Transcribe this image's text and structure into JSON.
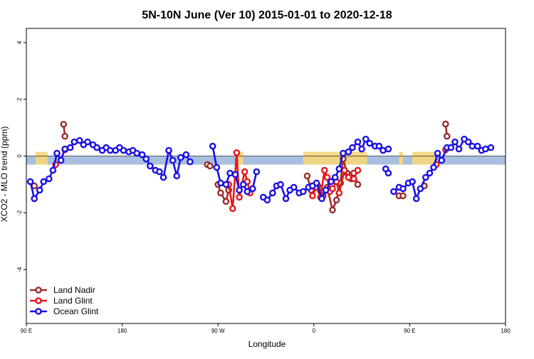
{
  "chart_data": {
    "type": "line",
    "title": "5N-10N June (Ver 10)   2015-01-01 to 2020-12-18",
    "xlabel": "Longitude",
    "ylabel": "XCO2 - MLO trend (ppm)",
    "xlim": [
      0,
      360
    ],
    "ylim": [
      -5.9,
      4.5
    ],
    "x_ticks": [
      {
        "value": 0,
        "label": "90 E"
      },
      {
        "value": 72,
        "label": "180"
      },
      {
        "value": 144,
        "label": "90 W"
      },
      {
        "value": 216,
        "label": "0"
      },
      {
        "value": 288,
        "label": "90 E"
      },
      {
        "value": 360,
        "label": "180"
      }
    ],
    "y_ticks": [
      {
        "value": -4,
        "label": "-4"
      },
      {
        "value": -2,
        "label": "-2"
      },
      {
        "value": 0,
        "label": "0"
      },
      {
        "value": 2,
        "label": "2"
      },
      {
        "value": 4,
        "label": "4"
      }
    ],
    "zero_line": true,
    "background_band": {
      "from": -0.3,
      "to": 0.0,
      "color": "#a8bfe0"
    },
    "land_mask_color": "#f5d77a",
    "land_mask_ranges": [
      [
        7,
        16
      ],
      [
        157,
        163
      ],
      [
        208,
        256
      ],
      [
        280,
        283
      ],
      [
        290,
        307
      ]
    ],
    "legend_position": "bottom-left",
    "series": [
      {
        "name": "Land Nadir",
        "color": "#9b2c2c",
        "segments": [
          [
            [
              6,
              -1.05
            ]
          ],
          [
            [
              28,
              1.12
            ],
            [
              29,
              0.7
            ]
          ],
          [
            [
              136,
              -0.3
            ],
            [
              138,
              -0.35
            ]
          ],
          [
            [
              144,
              -1.0
            ],
            [
              146,
              -1.3
            ],
            [
              150,
              -1.6
            ],
            [
              152,
              -1.2
            ]
          ],
          [
            [
              211,
              -0.7
            ],
            [
              214,
              -1.2
            ],
            [
              216,
              -1.05
            ],
            [
              219,
              -1.05
            ],
            [
              223,
              -1.4
            ],
            [
              226,
              -1.1
            ],
            [
              230,
              -1.9
            ],
            [
              233,
              -1.55
            ],
            [
              236,
              -0.95
            ],
            [
              238,
              -0.1
            ],
            [
              241,
              -0.6
            ],
            [
              244,
              -0.8
            ],
            [
              246,
              -0.6
            ],
            [
              249,
              -1.0
            ]
          ],
          [
            [
              280,
              -1.4
            ],
            [
              283,
              -1.4
            ]
          ],
          [
            [
              299,
              -1.05
            ]
          ],
          [
            [
              315,
              1.13
            ],
            [
              316,
              0.7
            ]
          ]
        ]
      },
      {
        "name": "Land Glint",
        "color": "#e8161a",
        "segments": [
          [
            [
              22,
              -0.3
            ]
          ],
          [
            [
              29,
              0.22
            ]
          ],
          [
            [
              152,
              -1.0
            ],
            [
              155,
              -1.85
            ],
            [
              158,
              0.12
            ],
            [
              160,
              -1.45
            ],
            [
              164,
              -0.55
            ],
            [
              166,
              -0.9
            ],
            [
              168,
              -1.3
            ]
          ],
          [
            [
              215,
              -1.4
            ],
            [
              218,
              -1.1
            ],
            [
              221,
              -1.45
            ],
            [
              224,
              -0.5
            ],
            [
              226,
              -0.75
            ],
            [
              228,
              -1.25
            ],
            [
              230,
              -1.15
            ],
            [
              233,
              -0.9
            ],
            [
              235,
              -1.3
            ],
            [
              239,
              -0.5
            ],
            [
              242,
              -0.75
            ],
            [
              246,
              -0.8
            ],
            [
              249,
              -0.5
            ]
          ],
          [
            [
              308,
              -0.3
            ]
          ],
          [
            [
              315,
              0.22
            ]
          ]
        ]
      },
      {
        "name": "Ocean Glint",
        "color": "#1a0fe6",
        "segments": [
          [
            [
              3,
              -0.9
            ],
            [
              6,
              -1.5
            ],
            [
              10,
              -1.2
            ],
            [
              13,
              -0.9
            ],
            [
              17,
              -0.8
            ],
            [
              20,
              -0.5
            ],
            [
              23,
              0.1
            ],
            [
              26,
              -0.15
            ],
            [
              29,
              0.25
            ],
            [
              33,
              0.3
            ],
            [
              36,
              0.5
            ],
            [
              40,
              0.55
            ],
            [
              43,
              0.4
            ],
            [
              46,
              0.5
            ],
            [
              50,
              0.4
            ],
            [
              53,
              0.3
            ],
            [
              57,
              0.2
            ],
            [
              60,
              0.3
            ],
            [
              63,
              0.2
            ],
            [
              67,
              0.2
            ],
            [
              70,
              0.3
            ],
            [
              73,
              0.2
            ],
            [
              77,
              0.15
            ],
            [
              80,
              0.2
            ],
            [
              83,
              0.1
            ],
            [
              87,
              0.05
            ],
            [
              90,
              -0.1
            ],
            [
              93,
              -0.35
            ],
            [
              97,
              -0.5
            ],
            [
              100,
              -0.55
            ],
            [
              103,
              -0.75
            ],
            [
              107,
              0.2
            ],
            [
              110,
              -0.15
            ],
            [
              113,
              -0.7
            ],
            [
              116,
              -0.05
            ],
            [
              120,
              0.05
            ],
            [
              123,
              -0.2
            ]
          ],
          [
            [
              140,
              0.35
            ],
            [
              143,
              -0.4
            ],
            [
              146,
              -0.95
            ],
            [
              150,
              -1.0
            ],
            [
              153,
              -0.6
            ],
            [
              157,
              -0.65
            ],
            [
              160,
              -1.2
            ],
            [
              163,
              -1.0
            ],
            [
              166,
              -1.25
            ],
            [
              170,
              -1.15
            ],
            [
              173,
              -0.55
            ]
          ],
          [
            [
              178,
              -1.45
            ],
            [
              181,
              -1.55
            ],
            [
              185,
              -1.3
            ],
            [
              188,
              -1.05
            ],
            [
              191,
              -1.0
            ],
            [
              195,
              -1.5
            ],
            [
              198,
              -1.2
            ],
            [
              201,
              -1.1
            ],
            [
              205,
              -1.3
            ],
            [
              208,
              -1.25
            ],
            [
              212,
              -1.1
            ],
            [
              215,
              -1.05
            ],
            [
              218,
              -0.95
            ],
            [
              222,
              -1.5
            ],
            [
              225,
              -1.2
            ],
            [
              229,
              -0.9
            ],
            [
              232,
              -0.75
            ],
            [
              235,
              -0.45
            ],
            [
              238,
              0.1
            ],
            [
              242,
              0.15
            ],
            [
              245,
              0.3
            ],
            [
              249,
              0.5
            ],
            [
              252,
              0.25
            ],
            [
              255,
              0.6
            ],
            [
              258,
              0.45
            ],
            [
              262,
              0.35
            ],
            [
              265,
              0.35
            ],
            [
              268,
              0.2
            ],
            [
              272,
              0.25
            ]
          ],
          [
            [
              270,
              -0.45
            ],
            [
              272,
              -0.6
            ]
          ],
          [
            [
              276,
              -1.25
            ],
            [
              280,
              -1.1
            ],
            [
              283,
              -1.15
            ],
            [
              287,
              -0.95
            ],
            [
              290,
              -0.9
            ],
            [
              293,
              -1.5
            ],
            [
              296,
              -1.15
            ],
            [
              300,
              -0.75
            ],
            [
              303,
              -0.6
            ],
            [
              306,
              -0.4
            ],
            [
              309,
              0.1
            ],
            [
              312,
              -0.15
            ],
            [
              316,
              0.3
            ],
            [
              319,
              0.3
            ],
            [
              322,
              0.5
            ],
            [
              325,
              0.25
            ],
            [
              329,
              0.6
            ],
            [
              332,
              0.5
            ],
            [
              335,
              0.35
            ],
            [
              339,
              0.35
            ],
            [
              342,
              0.2
            ],
            [
              345,
              0.25
            ],
            [
              349,
              0.3
            ]
          ]
        ]
      }
    ]
  }
}
